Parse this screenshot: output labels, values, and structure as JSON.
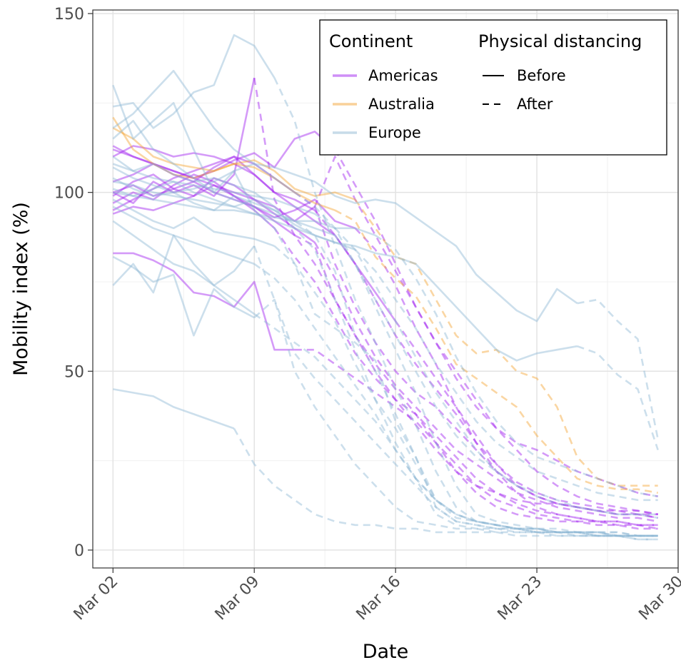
{
  "chart_data": {
    "type": "line",
    "xlabel": "Date",
    "ylabel": "Mobility index (%)",
    "x_ticks": [
      "Mar 02",
      "Mar 09",
      "Mar 16",
      "Mar 23",
      "Mar 30"
    ],
    "y_ticks": [
      "0",
      "50",
      "100",
      "150"
    ],
    "xlim": [
      "2020-03-01",
      "2020-03-30"
    ],
    "ylim": [
      -5,
      151
    ],
    "x_unit": "date",
    "grid": true,
    "legend": {
      "position": "top-right",
      "groups": [
        {
          "title": "Continent",
          "entries": [
            {
              "label": "Americas",
              "color": "#a020f0"
            },
            {
              "label": "Australia",
              "color": "#f4a434"
            },
            {
              "label": "Europe",
              "color": "#8fb8d4"
            }
          ]
        },
        {
          "title": "Physical distancing",
          "entries": [
            {
              "label": "Before",
              "dash": "solid"
            },
            {
              "label": "After",
              "dash": "dashed"
            }
          ]
        }
      ]
    },
    "colors": {
      "Americas": "#a020f0",
      "Australia": "#f4a434",
      "Europe": "#8fb8d4"
    },
    "series": [
      {
        "continent": "Americas",
        "x0": "2020-03-02",
        "cut": "2020-03-11",
        "values": [
          100,
          102,
          99,
          101,
          103,
          100,
          98,
          96,
          92,
          88,
          85,
          70,
          60,
          52,
          45,
          38,
          30,
          22,
          18,
          16,
          14,
          13,
          13,
          12,
          11,
          11,
          10,
          10
        ]
      },
      {
        "continent": "Americas",
        "x0": "2020-03-02",
        "cut": "2020-03-12",
        "values": [
          112,
          110,
          108,
          105,
          103,
          107,
          110,
          105,
          100,
          98,
          95,
          88,
          80,
          70,
          60,
          52,
          45,
          38,
          30,
          24,
          19,
          16,
          14,
          13,
          12,
          11,
          11,
          10
        ]
      },
      {
        "continent": "Americas",
        "x0": "2020-03-02",
        "cut": "2020-03-11",
        "values": [
          95,
          98,
          101,
          104,
          106,
          108,
          110,
          108,
          104,
          100,
          96,
          80,
          68,
          58,
          50,
          44,
          40,
          34,
          28,
          22,
          18,
          15,
          13,
          12,
          11,
          10,
          10,
          9
        ]
      },
      {
        "continent": "Americas",
        "x0": "2020-03-02",
        "cut": "2020-03-10",
        "values": [
          97,
          100,
          98,
          102,
          105,
          103,
          99,
          95,
          90,
          82,
          75,
          65,
          55,
          48,
          42,
          38,
          32,
          26,
          20,
          16,
          13,
          11,
          10,
          9,
          8,
          8,
          7,
          7
        ]
      },
      {
        "continent": "Americas",
        "x0": "2020-03-02",
        "cut": "2020-03-13",
        "values": [
          103,
          105,
          108,
          106,
          104,
          106,
          109,
          111,
          107,
          115,
          117,
          112,
          102,
          92,
          80,
          68,
          58,
          48,
          40,
          34,
          30,
          28,
          25,
          22,
          20,
          18,
          16,
          15
        ]
      },
      {
        "continent": "Americas",
        "x0": "2020-03-02",
        "cut": "2020-03-16",
        "values": [
          110,
          113,
          112,
          110,
          111,
          110,
          108,
          105,
          100,
          96,
          92,
          88,
          80,
          72,
          64,
          56,
          48,
          40,
          32,
          24,
          18,
          15,
          13,
          12,
          11,
          10,
          10,
          9
        ]
      },
      {
        "continent": "Americas",
        "x0": "2020-03-02",
        "cut": "2020-03-11",
        "values": [
          83,
          83,
          81,
          78,
          72,
          71,
          68,
          75,
          56,
          56,
          56,
          52,
          48,
          44,
          40,
          36,
          30,
          24,
          18,
          14,
          12,
          10,
          9,
          8,
          8,
          7,
          7,
          6
        ]
      },
      {
        "continent": "Americas",
        "x0": "2020-03-02",
        "cut": "2020-03-09",
        "values": [
          100,
          97,
          103,
          100,
          102,
          99,
          105,
          132,
          98,
          88,
          80,
          70,
          60,
          50,
          42,
          35,
          28,
          22,
          16,
          12,
          10,
          9,
          8,
          8,
          7,
          7,
          6,
          6
        ]
      },
      {
        "continent": "Americas",
        "x0": "2020-03-02",
        "cut": "2020-03-14",
        "values": [
          94,
          96,
          95,
          97,
          99,
          102,
          99,
          96,
          93,
          95,
          98,
          92,
          90,
          84,
          74,
          62,
          52,
          40,
          30,
          22,
          16,
          12,
          10,
          9,
          8,
          8,
          7,
          7
        ]
      },
      {
        "continent": "Americas",
        "x0": "2020-03-02",
        "cut": "2020-03-12",
        "values": [
          99,
          103,
          105,
          101,
          99,
          104,
          102,
          98,
          94,
          90,
          86,
          76,
          64,
          54,
          46,
          40,
          34,
          28,
          24,
          20,
          16,
          14,
          12,
          11,
          10,
          9,
          9,
          8
        ]
      },
      {
        "continent": "Americas",
        "x0": "2020-03-02",
        "cut": "2020-03-12",
        "values": [
          113,
          110,
          108,
          106,
          104,
          102,
          100,
          98,
          96,
          92,
          96,
          110,
          98,
          88,
          78,
          68,
          58,
          50,
          42,
          34,
          28,
          22,
          18,
          15,
          13,
          12,
          11,
          10
        ]
      },
      {
        "continent": "Australia",
        "x0": "2020-03-02",
        "cut": "2020-03-14",
        "values": [
          121,
          112,
          108,
          105,
          104,
          106,
          108,
          109,
          106,
          101,
          99,
          100,
          98,
          90,
          82,
          80,
          70,
          60,
          55,
          56,
          50,
          48,
          40,
          26,
          20,
          18,
          18,
          18
        ]
      },
      {
        "continent": "Australia",
        "x0": "2020-03-02",
        "cut": "2020-03-13",
        "values": [
          118,
          115,
          110,
          108,
          107,
          106,
          108,
          107,
          104,
          100,
          97,
          95,
          92,
          82,
          76,
          71,
          62,
          52,
          48,
          44,
          40,
          32,
          26,
          20,
          18,
          17,
          17,
          16
        ]
      },
      {
        "continent": "Europe",
        "x0": "2020-03-02",
        "cut": "2020-03-09",
        "values": [
          130,
          115,
          120,
          125,
          112,
          100,
          106,
          95,
          90,
          80,
          66,
          62,
          58,
          53,
          36,
          26,
          12,
          8,
          7,
          6,
          6,
          5,
          5,
          5,
          4,
          4,
          4,
          4
        ]
      },
      {
        "continent": "Europe",
        "x0": "2020-03-02",
        "cut": "2020-03-10",
        "values": [
          124,
          125,
          118,
          122,
          128,
          130,
          144,
          141,
          132,
          120,
          100,
          85,
          70,
          58,
          45,
          35,
          22,
          12,
          8,
          7,
          6,
          6,
          5,
          5,
          5,
          4,
          4,
          4
        ]
      },
      {
        "continent": "Europe",
        "x0": "2020-03-02",
        "cut": "2020-03-11",
        "values": [
          118,
          122,
          128,
          134,
          126,
          118,
          112,
          108,
          104,
          100,
          96,
          90,
          80,
          68,
          56,
          44,
          30,
          18,
          10,
          8,
          7,
          6,
          6,
          5,
          5,
          5,
          4,
          4
        ]
      },
      {
        "continent": "Europe",
        "x0": "2020-03-02",
        "cut": "2020-03-10",
        "values": [
          110,
          106,
          108,
          105,
          103,
          104,
          102,
          100,
          96,
          90,
          84,
          70,
          56,
          42,
          30,
          20,
          10,
          7,
          6,
          6,
          5,
          5,
          5,
          4,
          4,
          4,
          4,
          4
        ]
      },
      {
        "continent": "Europe",
        "x0": "2020-03-02",
        "cut": "2020-03-10",
        "values": [
          104,
          101,
          99,
          100,
          97,
          95,
          99,
          97,
          95,
          92,
          88,
          78,
          60,
          50,
          38,
          26,
          14,
          10,
          8,
          7,
          6,
          6,
          5,
          5,
          5,
          4,
          4,
          4
        ]
      },
      {
        "continent": "Europe",
        "x0": "2020-03-02",
        "cut": "2020-03-10",
        "values": [
          98,
          95,
          92,
          90,
          93,
          89,
          88,
          87,
          85,
          80,
          72,
          64,
          52,
          42,
          34,
          24,
          14,
          9,
          8,
          7,
          6,
          6,
          5,
          5,
          5,
          5,
          4,
          4
        ]
      },
      {
        "continent": "Europe",
        "x0": "2020-03-02",
        "cut": "2020-03-09",
        "values": [
          82,
          79,
          75,
          77,
          60,
          73,
          68,
          65,
          70,
          55,
          48,
          42,
          36,
          30,
          24,
          18,
          12,
          8,
          7,
          6,
          6,
          5,
          5,
          5,
          4,
          4,
          4,
          4
        ]
      },
      {
        "continent": "Europe",
        "x0": "2020-03-02",
        "cut": "2020-03-08",
        "values": [
          45,
          44,
          43,
          40,
          38,
          36,
          34,
          24,
          18,
          14,
          10,
          8,
          7,
          7,
          6,
          6,
          5,
          5,
          5,
          5,
          4,
          4,
          4,
          4,
          4,
          4,
          3,
          3
        ]
      },
      {
        "continent": "Europe",
        "x0": "2020-03-02",
        "cut": "2020-03-09",
        "values": [
          92,
          88,
          84,
          80,
          78,
          74,
          70,
          66,
          62,
          58,
          54,
          48,
          42,
          36,
          28,
          20,
          14,
          10,
          8,
          7,
          6,
          6,
          5,
          5,
          5,
          4,
          4,
          4
        ]
      },
      {
        "continent": "Europe",
        "x0": "2020-03-02",
        "cut": "2020-03-09",
        "values": [
          74,
          80,
          72,
          88,
          80,
          74,
          78,
          85,
          70,
          50,
          40,
          32,
          24,
          18,
          12,
          8,
          7,
          6,
          6,
          5,
          5,
          5,
          4,
          4,
          4,
          4,
          3,
          3
        ]
      },
      {
        "continent": "Europe",
        "x0": "2020-03-02",
        "cut": "2020-03-09",
        "values": [
          96,
          93,
          90,
          88,
          86,
          84,
          82,
          80,
          76,
          70,
          62,
          54,
          46,
          38,
          28,
          20,
          14,
          10,
          8,
          7,
          6,
          5,
          5,
          5,
          4,
          4,
          4,
          4
        ]
      },
      {
        "continent": "Europe",
        "x0": "2020-03-02",
        "cut": "2020-03-25",
        "values": [
          107,
          104,
          102,
          100,
          101,
          103,
          106,
          108,
          107,
          105,
          103,
          99,
          97,
          98,
          97,
          93,
          89,
          85,
          77,
          72,
          67,
          64,
          73,
          69,
          70,
          64,
          59,
          31
        ]
      },
      {
        "continent": "Europe",
        "x0": "2020-03-02",
        "cut": "2020-03-25",
        "values": [
          100,
          99,
          101,
          103,
          100,
          98,
          96,
          98,
          95,
          91,
          88,
          86,
          85,
          83,
          82,
          80,
          74,
          68,
          62,
          56,
          53,
          55,
          56,
          57,
          55,
          49,
          45,
          28
        ]
      },
      {
        "continent": "Europe",
        "x0": "2020-03-02",
        "cut": "2020-03-13",
        "values": [
          115,
          120,
          112,
          108,
          104,
          100,
          98,
          96,
          94,
          92,
          90,
          88,
          80,
          70,
          60,
          50,
          40,
          32,
          26,
          22,
          18,
          16,
          14,
          12,
          11,
          10,
          10,
          10
        ]
      },
      {
        "continent": "Europe",
        "x0": "2020-03-02",
        "cut": "2020-03-14",
        "values": [
          103,
          102,
          100,
          99,
          98,
          97,
          96,
          94,
          92,
          90,
          88,
          86,
          84,
          78,
          70,
          62,
          52,
          44,
          36,
          30,
          26,
          22,
          20,
          18,
          16,
          15,
          14,
          14
        ]
      },
      {
        "continent": "Europe",
        "x0": "2020-03-02",
        "cut": "2020-03-15",
        "values": [
          101,
          99,
          98,
          97,
          96,
          95,
          95,
          94,
          93,
          92,
          92,
          90,
          90,
          88,
          84,
          76,
          66,
          54,
          44,
          36,
          30,
          26,
          24,
          22,
          20,
          18,
          16,
          15
        ]
      },
      {
        "continent": "Europe",
        "x0": "2020-03-02",
        "cut": "2020-03-12",
        "values": [
          108,
          106,
          104,
          103,
          102,
          101,
          100,
          99,
          98,
          96,
          94,
          90,
          84,
          74,
          64,
          54,
          44,
          36,
          28,
          22,
          18,
          15,
          13,
          12,
          11,
          10,
          10,
          9
        ]
      }
    ]
  }
}
